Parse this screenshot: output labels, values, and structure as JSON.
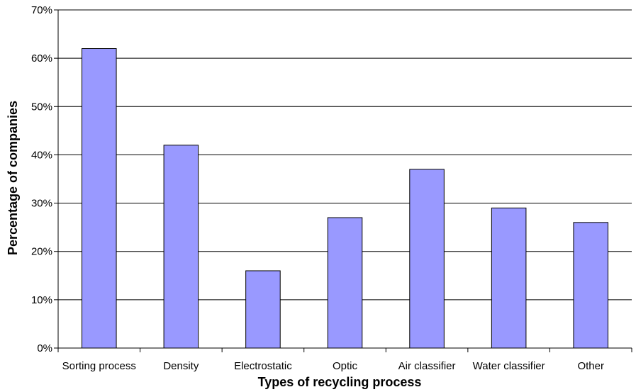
{
  "chart_data": {
    "type": "bar",
    "title": "",
    "xlabel": "Types of recycling process",
    "ylabel": "Percentage of companies",
    "categories": [
      "Sorting process",
      "Density",
      "Electrostatic",
      "Optic",
      "Air classifier",
      "Water classifier",
      "Other"
    ],
    "values": [
      62,
      42,
      16,
      27,
      37,
      29,
      26
    ],
    "ylim": [
      0,
      70
    ],
    "yticks": [
      "0%",
      "10%",
      "20%",
      "30%",
      "40%",
      "50%",
      "60%",
      "70%"
    ],
    "grid": true,
    "bar_color": "#9999ff",
    "bar_edge_color": "#000000"
  }
}
